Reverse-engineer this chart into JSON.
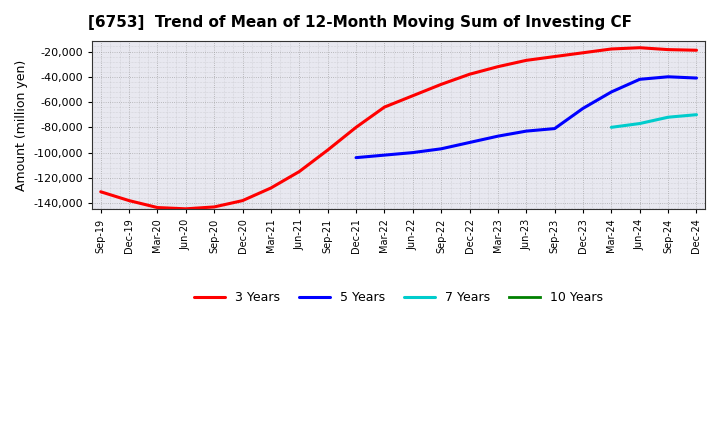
{
  "title": "[6753]  Trend of Mean of 12-Month Moving Sum of Investing CF",
  "ylabel": "Amount (million yen)",
  "background_color": "#ffffff",
  "plot_bg_color": "#e8e8f0",
  "grid_color": "#999999",
  "ylim": [
    -145000,
    -12000
  ],
  "yticks": [
    -140000,
    -120000,
    -100000,
    -80000,
    -60000,
    -40000,
    -20000
  ],
  "x_labels": [
    "Sep-19",
    "Dec-19",
    "Mar-20",
    "Jun-20",
    "Sep-20",
    "Dec-20",
    "Mar-21",
    "Jun-21",
    "Sep-21",
    "Dec-21",
    "Mar-22",
    "Jun-22",
    "Sep-22",
    "Dec-22",
    "Mar-23",
    "Jun-23",
    "Sep-23",
    "Dec-23",
    "Mar-24",
    "Jun-24",
    "Sep-24",
    "Dec-24"
  ],
  "series": {
    "3 Years": {
      "color": "#ff0000",
      "data": {
        "Sep-19": -131000,
        "Dec-19": -138000,
        "Mar-20": -143500,
        "Jun-20": -144500,
        "Sep-20": -143000,
        "Dec-20": -138000,
        "Mar-21": -128000,
        "Jun-21": -115000,
        "Sep-21": -98000,
        "Dec-21": -80000,
        "Mar-22": -64000,
        "Jun-22": -55000,
        "Sep-22": -46000,
        "Dec-22": -38000,
        "Mar-23": -32000,
        "Jun-23": -27000,
        "Sep-23": -24000,
        "Dec-23": -21000,
        "Mar-24": -18000,
        "Jun-24": -17000,
        "Sep-24": -18500,
        "Dec-24": -19000
      }
    },
    "5 Years": {
      "color": "#0000ff",
      "data": {
        "Dec-21": -104000,
        "Mar-22": -102000,
        "Jun-22": -100000,
        "Sep-22": -97000,
        "Dec-22": -92000,
        "Mar-23": -87000,
        "Jun-23": -83000,
        "Sep-23": -81000,
        "Dec-23": -65000,
        "Mar-24": -52000,
        "Jun-24": -42000,
        "Sep-24": -40000,
        "Dec-24": -41000
      }
    },
    "7 Years": {
      "color": "#00cccc",
      "data": {
        "Mar-24": -80000,
        "Jun-24": -77000,
        "Sep-24": -72000,
        "Dec-24": -70000
      }
    },
    "10 Years": {
      "color": "#008000",
      "data": {}
    }
  }
}
